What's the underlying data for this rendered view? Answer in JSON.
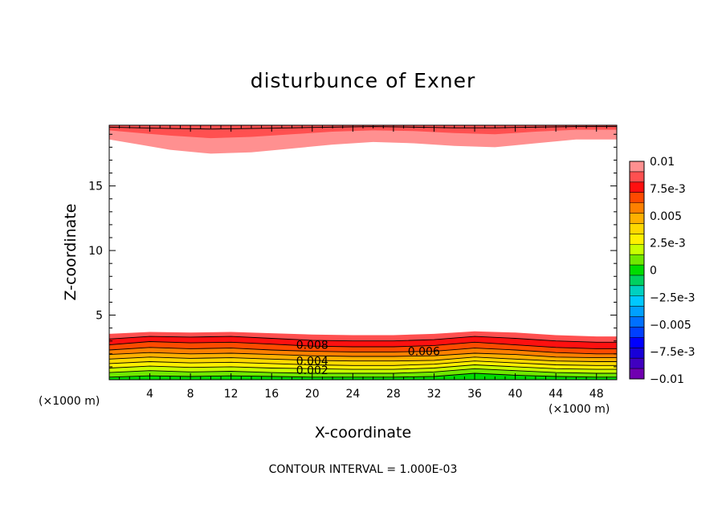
{
  "chart_data": {
    "type": "contour",
    "title": "disturbunce of Exner",
    "xlabel": "X-coordinate",
    "ylabel": "Z-coordinate",
    "x_unit": "(×1000 m)",
    "x_ticks": [
      "4",
      "8",
      "12",
      "16",
      "20",
      "24",
      "28",
      "32",
      "36",
      "40",
      "44",
      "48"
    ],
    "y_ticks": [
      "5",
      "10",
      "15"
    ],
    "xlim": [
      0,
      50
    ],
    "ylim": [
      0,
      19.7
    ],
    "footnote": "CONTOUR INTERVAL = 1.000E-03",
    "colorbar": {
      "labels": [
        "0.01",
        "7.5e-3",
        "0.005",
        "2.5e-3",
        "0",
        "−2.5e-3",
        "−0.005",
        "−7.5e-3",
        "−0.01"
      ],
      "levels_top_to_bottom": [
        0.01,
        0.009,
        0.008,
        0.007,
        0.006,
        0.005,
        0.004,
        0.003,
        0.002,
        0.001,
        0,
        -0.001,
        -0.002,
        -0.003,
        -0.004,
        -0.005,
        -0.006,
        -0.007,
        -0.008,
        -0.009,
        -0.01
      ],
      "colors_top_to_bottom": [
        "#ff9090",
        "#ff5050",
        "#ff1010",
        "#ff4a00",
        "#ff8000",
        "#ffb000",
        "#ffd800",
        "#fff000",
        "#c8ff00",
        "#70e800",
        "#00dc00",
        "#00d060",
        "#00d0c0",
        "#00c8ff",
        "#00a0ff",
        "#0070ff",
        "#0040ff",
        "#0000ff",
        "#1800d8",
        "#4000c0",
        "#7000b0"
      ]
    },
    "top_band": {
      "x": [
        0,
        3,
        6,
        10,
        14,
        18,
        22,
        26,
        30,
        34,
        38,
        42,
        46,
        50
      ],
      "z_inner": [
        18.6,
        18.2,
        17.8,
        17.5,
        17.6,
        17.9,
        18.2,
        18.4,
        18.3,
        18.1,
        18.0,
        18.3,
        18.6,
        18.6
      ],
      "z_mid": [
        19.3,
        19.1,
        18.9,
        18.7,
        18.8,
        19.0,
        19.2,
        19.3,
        19.25,
        19.1,
        19.0,
        19.2,
        19.35,
        19.35
      ],
      "z_line": [
        19.55,
        19.5,
        19.45,
        19.4,
        19.45,
        19.5,
        19.55,
        19.6,
        19.55,
        19.5,
        19.5,
        19.55,
        19.6,
        19.6
      ]
    },
    "bottom_band": {
      "x": [
        0,
        4,
        8,
        12,
        16,
        20,
        24,
        28,
        32,
        36,
        40,
        44,
        48,
        50
      ],
      "layers_top_to_bottom": [
        {
          "value": 0.009,
          "z": [
            3.55,
            3.7,
            3.65,
            3.7,
            3.6,
            3.5,
            3.45,
            3.45,
            3.55,
            3.75,
            3.65,
            3.45,
            3.35,
            3.35
          ]
        },
        {
          "value": 0.008,
          "z": [
            3.15,
            3.35,
            3.3,
            3.35,
            3.2,
            3.05,
            3.0,
            3.0,
            3.1,
            3.35,
            3.2,
            3.0,
            2.9,
            2.9
          ]
        },
        {
          "value": 0.007,
          "z": [
            2.7,
            2.95,
            2.85,
            2.9,
            2.75,
            2.6,
            2.55,
            2.55,
            2.65,
            2.9,
            2.7,
            2.5,
            2.4,
            2.4
          ]
        },
        {
          "value": 0.006,
          "z": [
            2.3,
            2.5,
            2.4,
            2.45,
            2.3,
            2.2,
            2.15,
            2.15,
            2.2,
            2.45,
            2.3,
            2.1,
            2.0,
            2.0
          ]
        },
        {
          "value": 0.005,
          "z": [
            1.95,
            2.1,
            2.0,
            2.05,
            1.95,
            1.85,
            1.8,
            1.8,
            1.85,
            2.05,
            1.95,
            1.75,
            1.7,
            1.7
          ]
        },
        {
          "value": 0.004,
          "z": [
            1.6,
            1.75,
            1.65,
            1.7,
            1.6,
            1.5,
            1.45,
            1.45,
            1.5,
            1.75,
            1.6,
            1.45,
            1.4,
            1.4
          ]
        },
        {
          "value": 0.003,
          "z": [
            1.25,
            1.4,
            1.3,
            1.35,
            1.25,
            1.15,
            1.1,
            1.1,
            1.2,
            1.45,
            1.3,
            1.15,
            1.1,
            1.1
          ]
        },
        {
          "value": 0.002,
          "z": [
            0.9,
            1.05,
            0.95,
            1.0,
            0.9,
            0.85,
            0.8,
            0.8,
            0.9,
            1.15,
            1.0,
            0.85,
            0.8,
            0.8
          ]
        },
        {
          "value": 0.001,
          "z": [
            0.55,
            0.7,
            0.6,
            0.65,
            0.55,
            0.5,
            0.5,
            0.5,
            0.6,
            0.85,
            0.7,
            0.55,
            0.5,
            0.5
          ]
        },
        {
          "value": 0.0,
          "z": [
            0.2,
            0.3,
            0.25,
            0.3,
            0.25,
            0.2,
            0.2,
            0.2,
            0.25,
            0.5,
            0.35,
            0.25,
            0.2,
            0.2
          ]
        }
      ]
    },
    "contour_labels": [
      {
        "text": "0.008",
        "x": 20.0,
        "z": 2.7
      },
      {
        "text": "0.006",
        "x": 31.0,
        "z": 2.2
      },
      {
        "text": "0.004",
        "x": 20.0,
        "z": 1.45
      },
      {
        "text": "0.002",
        "x": 20.0,
        "z": 0.75
      }
    ]
  }
}
